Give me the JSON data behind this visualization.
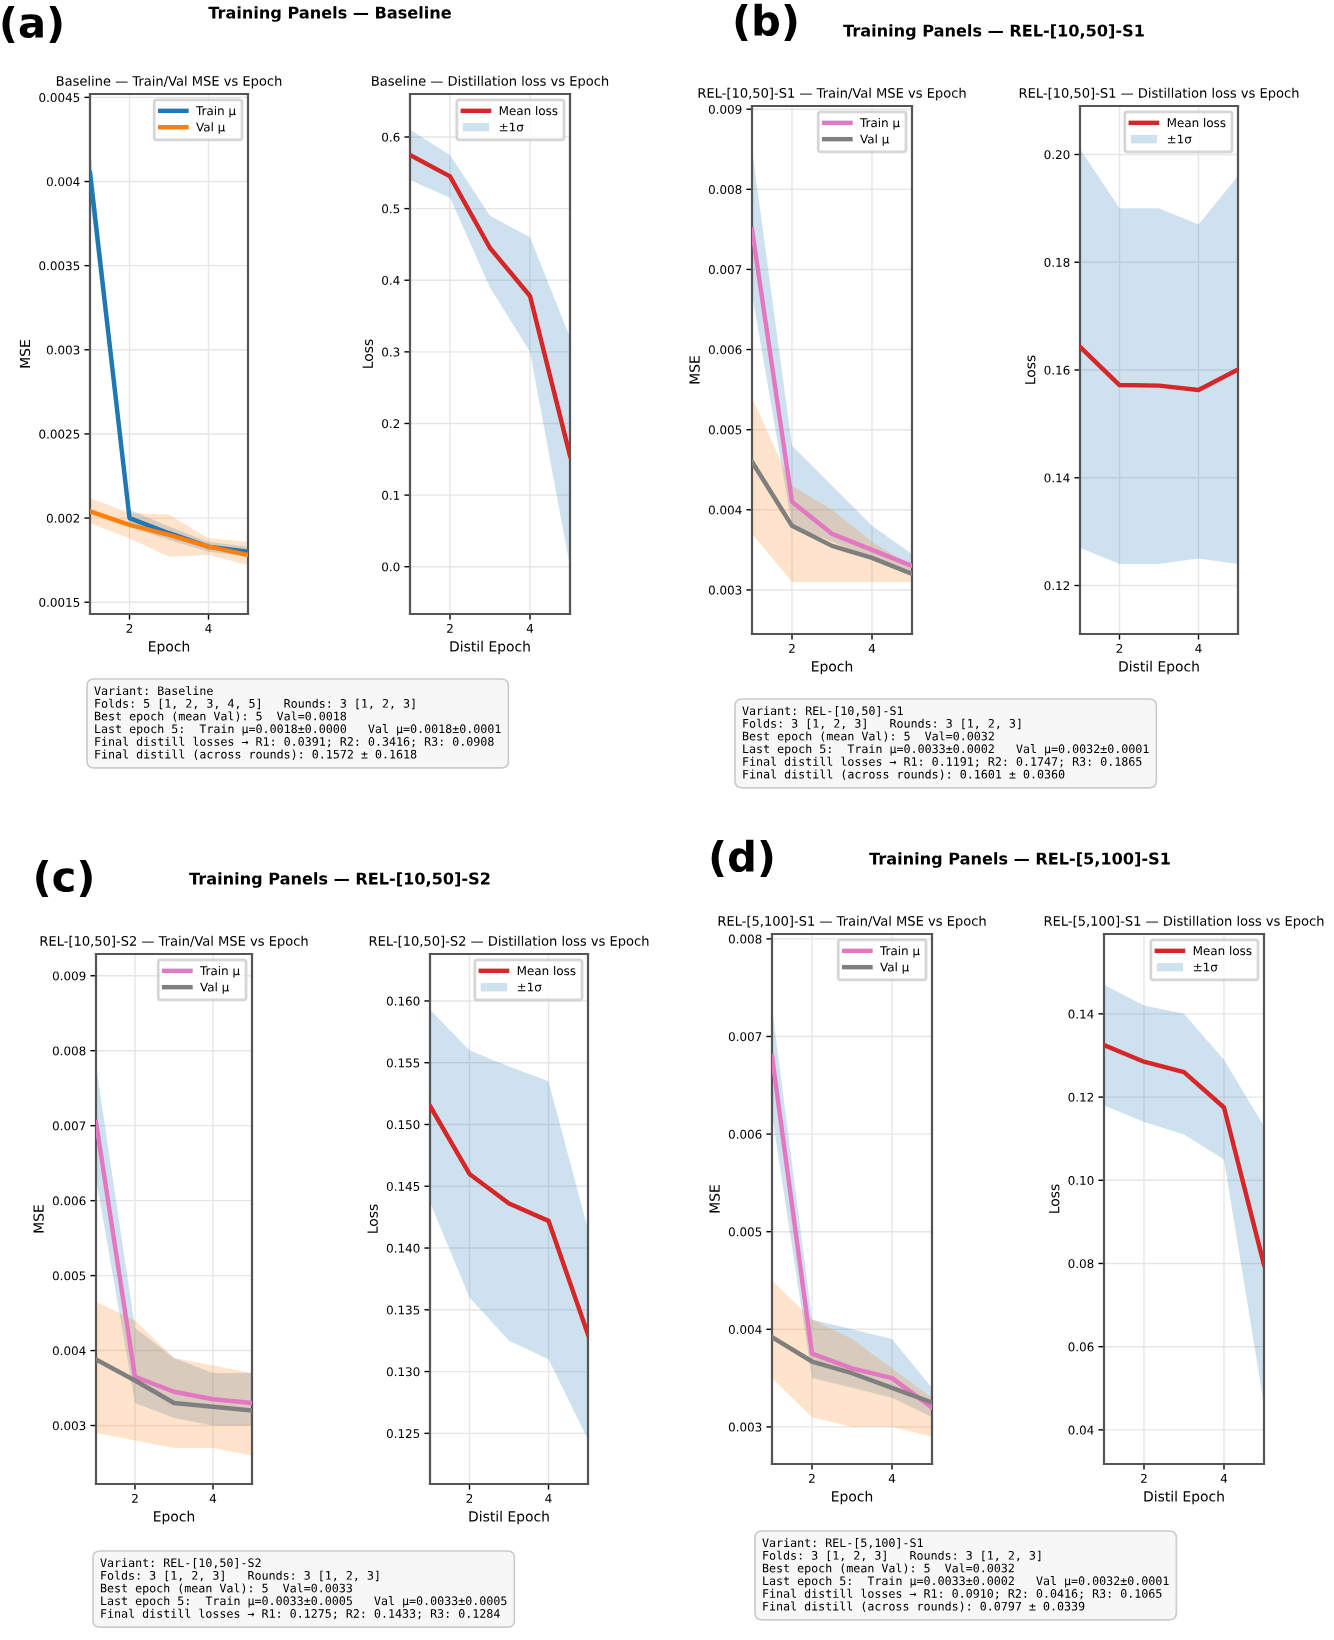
{
  "chart_data": [
    {
      "type": "line",
      "title": "Baseline — Train/Val MSE vs Epoch",
      "xlabel": "Epoch",
      "ylabel": "MSE",
      "x": [
        1,
        2,
        3,
        4,
        5
      ],
      "xlim": [
        1,
        5
      ],
      "xticks": [
        2,
        4
      ],
      "ylim": [
        0.00143,
        0.00452
      ],
      "yticks": [
        0.0015,
        0.002,
        0.0025,
        0.003,
        0.0035,
        0.004,
        0.0045
      ],
      "grid": true,
      "legend": "top right",
      "annotations": [
        "(a)",
        "Training Panels — Baseline",
        "Variant: Baseline\nFolds: 5 [1, 2, 3, 4, 5]   Rounds: 3 [1, 2, 3]\nBest epoch (mean Val): 5  Val=0.0018\nLast epoch 5:  Train μ=0.0018±0.0000   Val μ=0.0018±0.0001\nFinal distill losses → R1: 0.0391; R2: 0.3416; R3: 0.0908\nFinal distill (across rounds): 0.1572 ± 0.1618"
      ],
      "series": [
        {
          "name": "Train μ",
          "color": "#1f77b4",
          "values": [
            0.00405,
            0.002,
            0.00191,
            0.00183,
            0.0018
          ],
          "lower": [
            0.0039,
            0.00195,
            0.00187,
            0.0018,
            0.00177
          ],
          "upper": [
            0.0042,
            0.00205,
            0.00195,
            0.00186,
            0.00183
          ]
        },
        {
          "name": "Val μ",
          "color": "#ff7f0e",
          "values": [
            0.00204,
            0.00196,
            0.0019,
            0.00183,
            0.00178
          ],
          "lower": [
            0.00197,
            0.00188,
            0.00177,
            0.00178,
            0.00172
          ],
          "upper": [
            0.00212,
            0.00203,
            0.00202,
            0.00188,
            0.00186
          ]
        }
      ]
    },
    {
      "type": "line",
      "title": "Baseline — Distillation loss vs Epoch",
      "xlabel": "Distil Epoch",
      "ylabel": "Loss",
      "x": [
        1,
        2,
        3,
        4,
        5
      ],
      "xlim": [
        1,
        5
      ],
      "xticks": [
        2,
        4
      ],
      "ylim": [
        -0.066,
        0.66
      ],
      "yticks": [
        {
          "value": 0,
          "label": "0.0"
        },
        0.1,
        0.2,
        0.3,
        0.4,
        0.5,
        0.6
      ],
      "grid": true,
      "legend": "top right",
      "series": [
        {
          "name": "Mean loss",
          "color": "#d62728",
          "values": [
            0.575,
            0.545,
            0.445,
            0.378,
            0.155
          ]
        },
        {
          "name": "±1σ",
          "color": "#1f77b4",
          "values": [
            null,
            null,
            null,
            null,
            null
          ],
          "lower": [
            0.54,
            0.515,
            0.39,
            0.3,
            0.0
          ],
          "upper": [
            0.61,
            0.575,
            0.49,
            0.46,
            0.32
          ]
        }
      ]
    },
    {
      "type": "line",
      "title": "REL-[10,50]-S1 — Train/Val MSE vs Epoch",
      "xlabel": "Epoch",
      "ylabel": "MSE",
      "x": [
        1,
        2,
        3,
        4,
        5
      ],
      "xlim": [
        1,
        5
      ],
      "xticks": [
        2,
        4
      ],
      "ylim": [
        0.00245,
        0.00904
      ],
      "yticks": [
        0.003,
        0.004,
        0.005,
        0.006,
        0.007,
        0.008,
        0.009
      ],
      "grid": true,
      "legend": "top right",
      "annotations": [
        "(b)",
        "Training Panels — REL-[10,50]-S1",
        "Variant: REL-[10,50]-S1\nFolds: 3 [1, 2, 3]   Rounds: 3 [1, 2, 3]\nBest epoch (mean Val): 5  Val=0.0032\nLast epoch 5:  Train μ=0.0033±0.0002   Val μ=0.0032±0.0001\nFinal distill losses → R1: 0.1191; R2: 0.1747; R3: 0.1865\nFinal distill (across rounds): 0.1601 ± 0.0360"
      ],
      "series": [
        {
          "color": "#1f77b4",
          "values": [
            null,
            null,
            null,
            null,
            null
          ],
          "lower": [
            0.0067,
            0.0038,
            0.0036,
            0.0034,
            0.0032
          ],
          "upper": [
            0.0085,
            0.0048,
            0.0043,
            0.0038,
            0.00345
          ]
        },
        {
          "color": "#ff7f0e",
          "values": [
            null,
            null,
            null,
            null,
            null
          ],
          "lower": [
            0.0037,
            0.0031,
            0.0031,
            0.0031,
            0.0031
          ],
          "upper": [
            0.0054,
            0.0043,
            0.004,
            0.0036,
            0.0033
          ]
        },
        {
          "name": "Train μ",
          "color": "#e377c2",
          "values": [
            0.0075,
            0.0041,
            0.0037,
            0.0035,
            0.0033
          ]
        },
        {
          "name": "Val μ",
          "color": "#7f7f7f",
          "values": [
            0.0046,
            0.0038,
            0.00355,
            0.0034,
            0.0032
          ]
        }
      ]
    },
    {
      "type": "line",
      "title": "REL-[10,50]-S1 — Distillation loss vs Epoch",
      "xlabel": "Distil Epoch",
      "ylabel": "Loss",
      "x": [
        1,
        2,
        3,
        4,
        5
      ],
      "xlim": [
        1,
        5
      ],
      "xticks": [
        2,
        4
      ],
      "ylim": [
        0.111,
        0.209
      ],
      "yticks": [
        0.12,
        0.14,
        0.16,
        0.18,
        {
          "value": 0.2,
          "label": "0.20"
        }
      ],
      "grid": true,
      "legend": "top right",
      "series": [
        {
          "name": "Mean loss",
          "color": "#d62728",
          "values": [
            0.1643,
            0.1572,
            0.1571,
            0.1563,
            0.1601
          ]
        },
        {
          "name": "±1σ",
          "color": "#1f77b4",
          "values": [
            null,
            null,
            null,
            null,
            null
          ],
          "lower": [
            0.127,
            0.124,
            0.124,
            0.125,
            0.124
          ],
          "upper": [
            0.201,
            0.19,
            0.19,
            0.187,
            0.196
          ]
        }
      ]
    },
    {
      "type": "line",
      "title": "REL-[10,50]-S2 — Train/Val MSE vs Epoch",
      "xlabel": "Epoch",
      "ylabel": "MSE",
      "x": [
        1,
        2,
        3,
        4,
        5
      ],
      "xlim": [
        1,
        5
      ],
      "xticks": [
        2,
        4
      ],
      "ylim": [
        0.00222,
        0.00929
      ],
      "yticks": [
        0.003,
        0.004,
        0.005,
        0.006,
        0.007,
        0.008,
        0.009
      ],
      "grid": true,
      "legend": "top right",
      "annotations": [
        "(c)",
        "Training Panels — REL-[10,50]-S2",
        "Variant: REL-[10,50]-S2\nFolds: 3 [1, 2, 3]   Rounds: 3 [1, 2, 3]\nBest epoch (mean Val): 5  Val=0.0033\nLast epoch 5:  Train μ=0.0033±0.0005   Val μ=0.0033±0.0005\nFinal distill losses → R1: 0.1275; R2: 0.1433; R3: 0.1284"
      ],
      "series": [
        {
          "color": "#1f77b4",
          "values": [
            null,
            null,
            null,
            null,
            null
          ],
          "lower": [
            0.0063,
            0.0033,
            0.0031,
            0.003,
            0.003
          ],
          "upper": [
            0.0078,
            0.0043,
            0.0039,
            0.0037,
            0.0037
          ]
        },
        {
          "color": "#ff7f0e",
          "values": [
            null,
            null,
            null,
            null,
            null
          ],
          "lower": [
            0.0029,
            0.0028,
            0.0027,
            0.0027,
            0.0026
          ],
          "upper": [
            0.00465,
            0.0044,
            0.0039,
            0.0038,
            0.0037
          ]
        },
        {
          "name": "Train μ",
          "color": "#e377c2",
          "values": [
            0.00705,
            0.00365,
            0.00345,
            0.00335,
            0.0033
          ]
        },
        {
          "name": "Val μ",
          "color": "#7f7f7f",
          "values": [
            0.00388,
            0.0036,
            0.0033,
            0.00325,
            0.0032
          ]
        }
      ]
    },
    {
      "type": "line",
      "title": "REL-[10,50]-S2 — Distillation loss vs Epoch",
      "xlabel": "Distil Epoch",
      "ylabel": "Loss",
      "x": [
        1,
        2,
        3,
        4,
        5
      ],
      "xlim": [
        1,
        5
      ],
      "xticks": [
        2,
        4
      ],
      "ylim": [
        0.1209,
        0.1638
      ],
      "yticks": [
        0.125,
        {
          "value": 0.13,
          "label": "0.130"
        },
        0.135,
        {
          "value": 0.14,
          "label": "0.140"
        },
        0.145,
        {
          "value": 0.15,
          "label": "0.150"
        },
        0.155,
        {
          "value": 0.16,
          "label": "0.160"
        }
      ],
      "grid": true,
      "legend": "top right",
      "series": [
        {
          "name": "Mean loss",
          "color": "#d62728",
          "values": [
            0.1515,
            0.146,
            0.1436,
            0.1422,
            0.133
          ]
        },
        {
          "name": "±1σ",
          "color": "#1f77b4",
          "values": [
            null,
            null,
            null,
            null,
            null
          ],
          "lower": [
            0.1437,
            0.136,
            0.1325,
            0.131,
            0.1245
          ],
          "upper": [
            0.1593,
            0.156,
            0.1547,
            0.1535,
            0.1415
          ]
        }
      ]
    },
    {
      "type": "line",
      "title": "REL-[5,100]-S1 — Train/Val MSE vs Epoch",
      "xlabel": "Epoch",
      "ylabel": "MSE",
      "x": [
        1,
        2,
        3,
        4,
        5
      ],
      "xlim": [
        1,
        5
      ],
      "xticks": [
        2,
        4
      ],
      "ylim": [
        0.00262,
        0.00805
      ],
      "yticks": [
        0.003,
        0.004,
        0.005,
        0.006,
        0.007,
        0.008
      ],
      "grid": true,
      "legend": "top right",
      "annotations": [
        "(d)",
        "Training Panels — REL-[5,100]-S1",
        "Variant: REL-[5,100]-S1\nFolds: 3 [1, 2, 3]   Rounds: 3 [1, 2, 3]\nBest epoch (mean Val): 5  Val=0.0032\nLast epoch 5:  Train μ=0.0033±0.0002   Val μ=0.0032±0.0001\nFinal distill losses → R1: 0.0910; R2: 0.0416; R3: 0.1065\nFinal distill (across rounds): 0.0797 ± 0.0339"
      ],
      "series": [
        {
          "color": "#1f77b4",
          "values": [
            null,
            null,
            null,
            null,
            null
          ],
          "lower": [
            0.0062,
            0.0035,
            0.0034,
            0.0033,
            0.0031
          ],
          "upper": [
            0.0073,
            0.0041,
            0.004,
            0.0039,
            0.0034
          ]
        },
        {
          "color": "#ff7f0e",
          "values": [
            null,
            null,
            null,
            null,
            null
          ],
          "lower": [
            0.0035,
            0.0031,
            0.003,
            0.003,
            0.0029
          ],
          "upper": [
            0.0045,
            0.0041,
            0.0039,
            0.0036,
            0.0033
          ]
        },
        {
          "name": "Train μ",
          "color": "#e377c2",
          "values": [
            0.0068,
            0.00375,
            0.0036,
            0.0035,
            0.0032
          ]
        },
        {
          "name": "Val μ",
          "color": "#7f7f7f",
          "values": [
            0.00392,
            0.00367,
            0.00355,
            0.0034,
            0.00325
          ]
        }
      ]
    },
    {
      "type": "line",
      "title": "REL-[5,100]-S1 — Distillation loss vs Epoch",
      "xlabel": "Distil Epoch",
      "ylabel": "Loss",
      "x": [
        1,
        2,
        3,
        4,
        5
      ],
      "xlim": [
        1,
        5
      ],
      "xticks": [
        2,
        4
      ],
      "ylim": [
        0.0318,
        0.1592
      ],
      "yticks": [
        0.04,
        0.06,
        0.08,
        {
          "value": 0.1,
          "label": "0.10"
        },
        0.12,
        0.14
      ],
      "grid": true,
      "legend": "top right",
      "series": [
        {
          "name": "Mean loss",
          "color": "#d62728",
          "values": [
            0.1325,
            0.1285,
            0.126,
            0.1175,
            0.0797
          ]
        },
        {
          "name": "±1σ",
          "color": "#1f77b4",
          "values": [
            null,
            null,
            null,
            null,
            null
          ],
          "lower": [
            0.118,
            0.114,
            0.111,
            0.105,
            0.046
          ],
          "upper": [
            0.147,
            0.142,
            0.14,
            0.129,
            0.113
          ]
        }
      ]
    }
  ]
}
